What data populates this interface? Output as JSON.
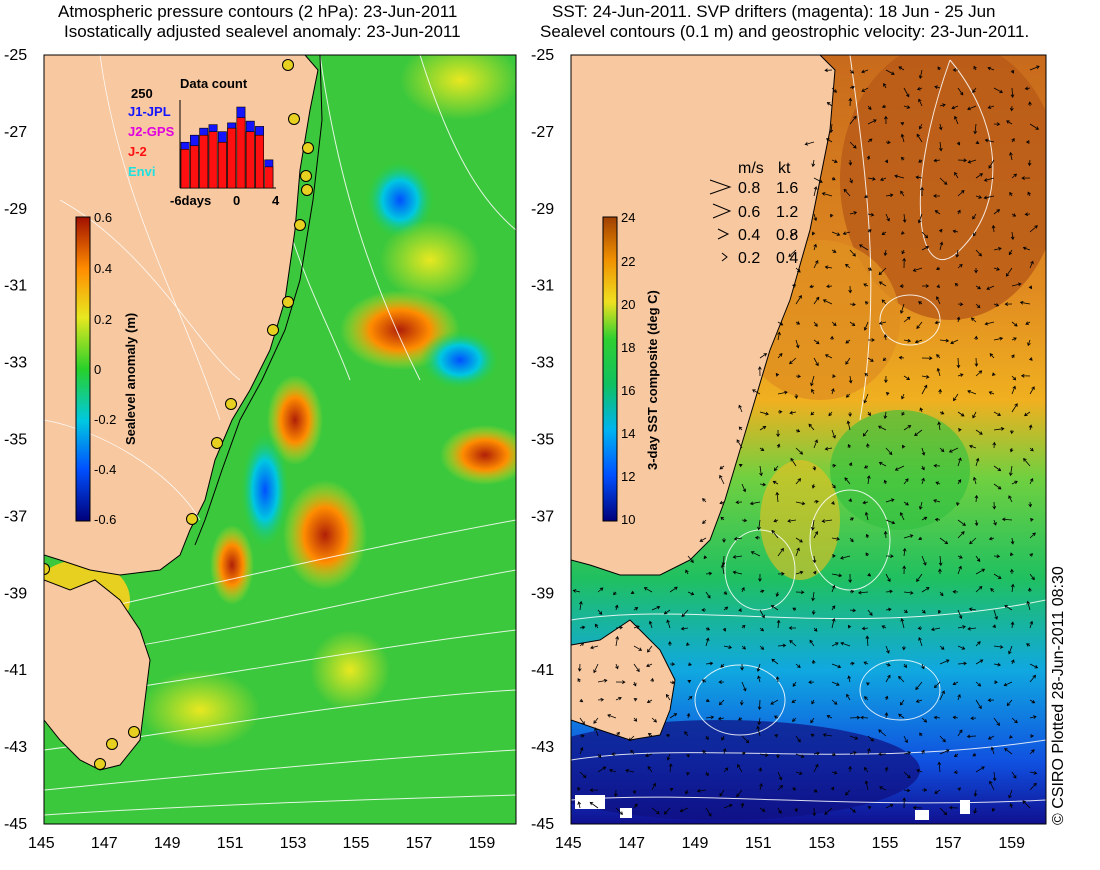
{
  "left_panel": {
    "title_line1": "Atmospheric pressure contours (2 hPa): 23-Jun-2011",
    "title_line2": "Isostatically adjusted sealevel anomaly: 23-Jun-2011",
    "colorbar": {
      "label": "Sealevel anomaly (m)",
      "ticks": [
        "0.6",
        "0.4",
        "0.2",
        "0",
        "-0.2",
        "-0.4",
        "-0.6"
      ]
    },
    "inset": {
      "title": "Data count",
      "ytick": "250",
      "xticks": [
        "-6days",
        "0",
        "4"
      ],
      "legend": [
        {
          "label": "J1-JPL",
          "color": "#1414ff"
        },
        {
          "label": "J2-GPS",
          "color": "#e000e0"
        },
        {
          "label": "J-2",
          "color": "#ff1010"
        },
        {
          "label": "Envi",
          "color": "#20e0e0"
        }
      ],
      "counts": [
        {
          "day": -6,
          "blue": 130,
          "red": 110
        },
        {
          "day": -5,
          "blue": 150,
          "red": 120
        },
        {
          "day": -4,
          "blue": 170,
          "red": 150
        },
        {
          "day": -3,
          "blue": 180,
          "red": 160
        },
        {
          "day": -2,
          "blue": 160,
          "red": 130
        },
        {
          "day": -1,
          "blue": 185,
          "red": 170
        },
        {
          "day": 0,
          "blue": 230,
          "red": 200
        },
        {
          "day": 1,
          "blue": 190,
          "red": 160
        },
        {
          "day": 2,
          "blue": 175,
          "red": 150
        },
        {
          "day": 3,
          "blue": 80,
          "red": 60
        }
      ]
    }
  },
  "right_panel": {
    "title_line1": "SST: 24-Jun-2011. SVP drifters (magenta): 18 Jun - 25 Jun",
    "title_line2": "Sealevel contours (0.1 m) and geostrophic velocity: 23-Jun-2011.",
    "colorbar": {
      "label": "3-day SST composite (deg C)",
      "ticks": [
        "24",
        "22",
        "20",
        "18",
        "16",
        "14",
        "12",
        "10"
      ]
    },
    "velocity_key": {
      "header_ms": "m/s",
      "header_kt": "kt",
      "rows": [
        {
          "ms": "0.8",
          "kt": "1.6"
        },
        {
          "ms": "0.6",
          "kt": "1.2"
        },
        {
          "ms": "0.4",
          "kt": "0.8"
        },
        {
          "ms": "0.2",
          "kt": "0.4"
        }
      ]
    }
  },
  "axes": {
    "y_ticks": [
      "-25",
      "-27",
      "-29",
      "-31",
      "-33",
      "-35",
      "-37",
      "-39",
      "-41",
      "-43",
      "-45"
    ],
    "x_ticks": [
      "145",
      "147",
      "149",
      "151",
      "153",
      "155",
      "157",
      "159"
    ]
  },
  "credit": "© CSIRO Plotted 28-Jun-2011 08:30",
  "colors": {
    "land": "#f8c8a0",
    "sla_ramp": [
      "#00007a",
      "#0050ff",
      "#00c8e0",
      "#28d02a",
      "#e8e820",
      "#ff8c00",
      "#a01000"
    ],
    "sst_ramp": [
      "#00007a",
      "#0050ff",
      "#00b4f0",
      "#10c060",
      "#30d030",
      "#f0e020",
      "#f09000",
      "#a04000"
    ]
  }
}
